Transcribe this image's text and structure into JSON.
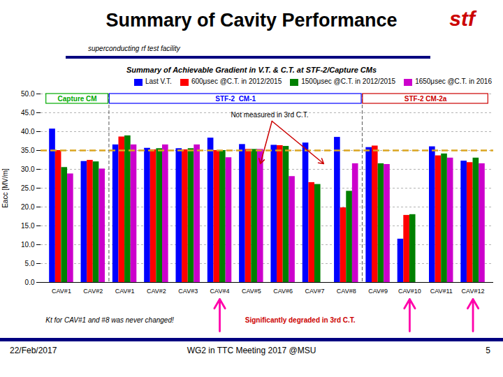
{
  "chart_data": {
    "type": "bar",
    "title": "Summary of Cavity Performance",
    "subtitle": "Summary of Achievable Gradient in V.T. & C.T. at STF-2/Capture CMs",
    "header_text": "superconducting rf test facility",
    "logo_text": "stf",
    "logo_color": "#CC0000",
    "banner_color": "#000080",
    "ylabel": "Eacc [MV/m]",
    "ylim": [
      0,
      50
    ],
    "yticks": [
      {
        "value": 0,
        "label": "0.0"
      },
      {
        "value": 5,
        "label": "5.0"
      },
      {
        "value": 10,
        "label": "10.0"
      },
      {
        "value": 15,
        "label": "15.0"
      },
      {
        "value": 20,
        "label": "20.0"
      },
      {
        "value": 25,
        "label": "25.0"
      },
      {
        "value": 30,
        "label": "30.0"
      },
      {
        "value": 35,
        "label": "35.0"
      },
      {
        "value": 40,
        "label": "40.0"
      },
      {
        "value": 45,
        "label": "45.0"
      },
      {
        "value": 50,
        "label": "50.0"
      }
    ],
    "grid": true,
    "legend": "upper right",
    "categories": [
      "CAV#1",
      "CAV#2",
      "CAV#1",
      "CAV#2",
      "CAV#3",
      "CAV#4",
      "CAV#5",
      "CAV#6",
      "CAV#7",
      "CAV#8",
      "CAV#9",
      "CAV#10",
      "CAV#11",
      "CAV#12"
    ],
    "series": [
      {
        "name": "Last V.T.",
        "color": "#0000FF",
        "values": [
          40.7,
          32.1,
          36.5,
          35.6,
          35.5,
          38.3,
          36.6,
          36.4,
          37.0,
          38.5,
          35.8,
          11.5,
          36.0,
          32.2
        ]
      },
      {
        "name": "600μsec @C.T. in 2012/2015",
        "color": "#FF0000",
        "values": [
          35.0,
          32.4,
          38.6,
          35.2,
          35.2,
          35.0,
          35.3,
          36.3,
          26.5,
          19.8,
          36.2,
          17.8,
          33.6,
          31.8
        ]
      },
      {
        "name": "1500μsec @C.T. in 2012/2015",
        "color": "#008000",
        "values": [
          30.5,
          32.0,
          38.9,
          35.5,
          35.5,
          35.0,
          35.3,
          36.1,
          26.0,
          24.2,
          31.5,
          18.0,
          34.1,
          33.0
        ]
      },
      {
        "name": "1650μsec @C.T. in 2016",
        "color": "#CC00CC",
        "values": [
          28.8,
          30.1,
          36.5,
          36.5,
          36.5,
          33.1,
          35.3,
          28.1,
          0.0,
          31.5,
          31.3,
          0.0,
          33.0,
          31.5
        ]
      }
    ],
    "reference_line": {
      "value": 35.0,
      "color": "#DAA520"
    },
    "sections": [
      {
        "name": "Capture CM",
        "color": "#00AA00",
        "start": 0,
        "end": 1
      },
      {
        "name": "STF-2  CM-1",
        "color": "#0000FF",
        "start": 2,
        "end": 9
      },
      {
        "name": "STF-2 CM-2a",
        "color": "#CC0000",
        "start": 10,
        "end": 13
      }
    ],
    "annotation": {
      "text": "Not measured in 3rd C.T.",
      "arrow_color": "#CC0000",
      "categories": [
        8,
        6
      ]
    },
    "bottom_note": "Kt for CAV#1 and #8 was never changed!",
    "bottom_annotation": {
      "text": "Significantly degraded in 3rd C.T.",
      "color": "#CC0000",
      "arrow_color": "#FF00AA",
      "categories": [
        5,
        11,
        13
      ]
    },
    "footer_left": "22/Feb/2017",
    "footer_center": "WG2 in TTC Meeting 2017 @MSU",
    "footer_right": "5"
  }
}
